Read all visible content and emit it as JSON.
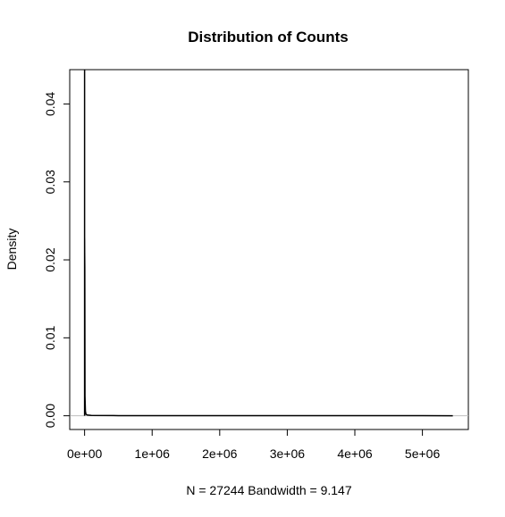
{
  "chart_data": {
    "type": "line",
    "title": "Distribution of Counts",
    "xlabel": "N = 27244   Bandwidth = 9.147",
    "ylabel": "Density",
    "xlim": [
      -220000,
      5680000
    ],
    "ylim": [
      -0.00176,
      0.0444
    ],
    "x_ticks": [
      0,
      1000000,
      2000000,
      3000000,
      4000000,
      5000000
    ],
    "x_tick_labels": [
      "0e+00",
      "1e+06",
      "2e+06",
      "3e+06",
      "4e+06",
      "5e+06"
    ],
    "y_ticks": [
      0,
      0.01,
      0.02,
      0.03,
      0.04
    ],
    "y_tick_labels": [
      "0.00",
      "0.01",
      "0.02",
      "0.03",
      "0.04"
    ],
    "grid": false,
    "baseline_color": "#bebebe",
    "line_color": "#000000",
    "series": [
      {
        "x": [
          -30,
          -20,
          -10,
          0,
          10,
          20,
          40,
          80,
          150,
          300,
          600,
          1500,
          3000,
          6000,
          12000,
          20000,
          40000,
          100000,
          500000,
          1000000,
          2000000,
          3000000,
          4000000,
          5000000,
          5450000
        ],
        "y": [
          0,
          0.0002,
          0.0015,
          0.0444,
          0.0444,
          0.0228,
          0.0228,
          0.0228,
          0.0228,
          0.0228,
          0.0225,
          0.0208,
          0.019,
          0.0025,
          0.0006,
          0.0002,
          0.0001,
          5e-05,
          2e-05,
          1e-05,
          1e-05,
          1e-05,
          1e-05,
          1e-05,
          0
        ]
      }
    ]
  }
}
